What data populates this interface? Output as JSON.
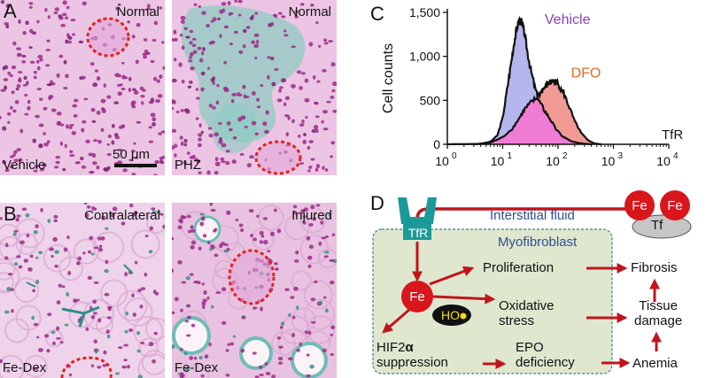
{
  "panels": {
    "A": {
      "letter": "A",
      "left_label_top": "Normal",
      "right_label_top": "Normal",
      "left_label_bottom": "Vehicle",
      "right_label_bottom": "PHZ",
      "scale_bar": "50 μm"
    },
    "B": {
      "letter": "B",
      "left_label_top": "Contralateral",
      "right_label_top": "Injured",
      "left_label_bottom": "Fe-Dex",
      "right_label_bottom": "Fe-Dex"
    },
    "C": {
      "letter": "C"
    },
    "D": {
      "letter": "D"
    }
  },
  "colors": {
    "tissue_pink": "#e8b9dd",
    "nuclei": "#9b2a8a",
    "iron_blue": "#5fb3a8",
    "glomerulus_outline": "#e0231e",
    "vehicle_fill": "#b5b6ee",
    "dfo_fill": "#f29a94",
    "overlap_fill": "#f07cd6",
    "vehicle_text": "#8a3fb8",
    "dfo_text": "#e06b26",
    "arrow_red": "#c0151d",
    "myofibroblast_box": "#dfe7cf",
    "tfr_teal": "#1c9a9a",
    "fe_red": "#d8161c"
  },
  "chart_data": {
    "type": "area",
    "title": "",
    "xlabel": "TfR",
    "ylabel": "Cell counts",
    "xscale": "log",
    "xlim": [
      1,
      10000
    ],
    "ylim": [
      0,
      1500
    ],
    "x_ticks": [
      "10^0",
      "10^1",
      "10^2",
      "10^3",
      "10^4"
    ],
    "y_ticks": [
      "0",
      "500",
      "1,000",
      "1,500"
    ],
    "series": [
      {
        "name": "Vehicle",
        "x": [
          1,
          4,
          6,
          8,
          10,
          12,
          14,
          16,
          18,
          20,
          22,
          25,
          28,
          32,
          38,
          45,
          55,
          70,
          90,
          120,
          180,
          260,
          400
        ],
        "values": [
          0,
          5,
          30,
          100,
          300,
          620,
          900,
          1150,
          1320,
          1420,
          1390,
          1250,
          1050,
          850,
          650,
          500,
          400,
          300,
          180,
          90,
          30,
          10,
          0
        ]
      },
      {
        "name": "DFO",
        "x": [
          3,
          6,
          10,
          15,
          20,
          25,
          32,
          40,
          50,
          60,
          70,
          80,
          95,
          110,
          130,
          160,
          200,
          260,
          340,
          450,
          600
        ],
        "values": [
          0,
          20,
          80,
          180,
          300,
          400,
          470,
          520,
          600,
          660,
          700,
          720,
          700,
          650,
          560,
          420,
          260,
          130,
          50,
          10,
          0
        ]
      }
    ],
    "legend": "inline labels",
    "grid": false
  },
  "diagram": {
    "interstitial_fluid": "Interstitial fluid",
    "myofibroblast": "Myofibroblast",
    "tfr": "TfR",
    "transferrin": "Tf",
    "fe_atom": "Fe",
    "ho_radical": "HO",
    "proliferation": "Proliferation",
    "oxidative_line1": "Oxidative",
    "oxidative_line2": "stress",
    "hif_line1": "HIF2",
    "hif_alpha": "α",
    "hif_line2": "suppression",
    "epo_line1": "EPO",
    "epo_line2": "deficiency",
    "fibrosis": "Fibrosis",
    "tissue_line1": "Tissue",
    "tissue_line2": "damage",
    "anemia": "Anemia"
  }
}
